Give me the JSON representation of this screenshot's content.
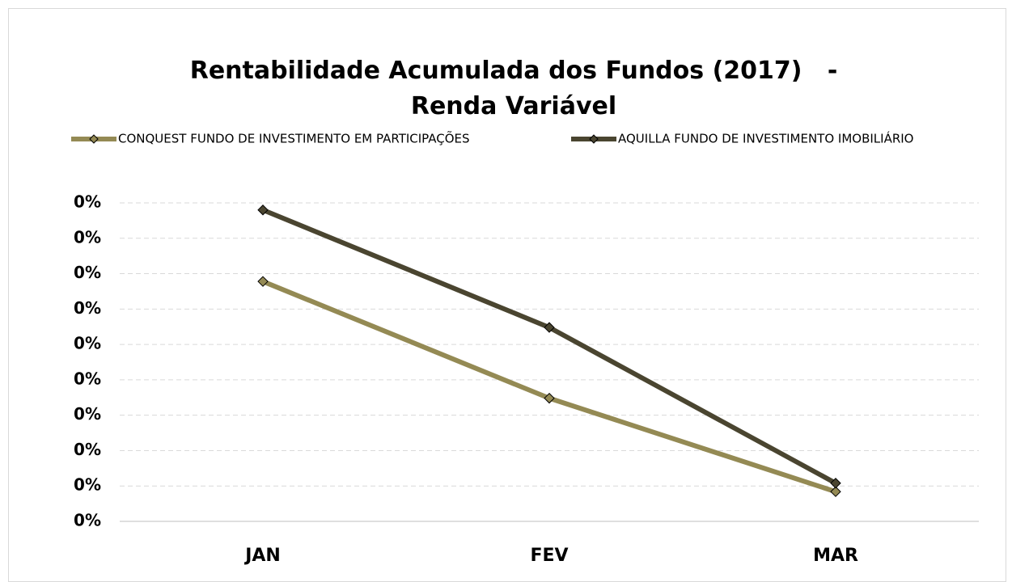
{
  "chart_data": {
    "type": "line",
    "title": "Rentabilidade Acumulada dos Fundos (2017)   -   Renda Variável",
    "categories": [
      "JAN",
      "FEV",
      "MAR"
    ],
    "series": [
      {
        "name": "CONQUEST FUNDO DE INVESTIMENTO EM PARTICIPAÇÕES",
        "color": "#948a54",
        "values": [
          0.339,
          0.174,
          0.042
        ]
      },
      {
        "name": "AQUILLA FUNDO DE INVESTIMENTO IMOBILIÁRIO",
        "color": "#4a4530",
        "values": [
          0.44,
          0.274,
          0.054
        ]
      }
    ],
    "ylim": [
      0,
      0.45
    ],
    "yticks": [
      {
        "value": 0,
        "label": "0%"
      },
      {
        "value": 0.05,
        "label": "0%"
      },
      {
        "value": 0.1,
        "label": "0%"
      },
      {
        "value": 0.15,
        "label": "0%"
      },
      {
        "value": 0.2,
        "label": "0%"
      },
      {
        "value": 0.25,
        "label": "0%"
      },
      {
        "value": 0.3,
        "label": "0%"
      },
      {
        "value": 0.35,
        "label": "0%"
      },
      {
        "value": 0.4,
        "label": "0%"
      },
      {
        "value": 0.45,
        "label": "0%"
      }
    ],
    "grid": true,
    "legend": "top"
  }
}
